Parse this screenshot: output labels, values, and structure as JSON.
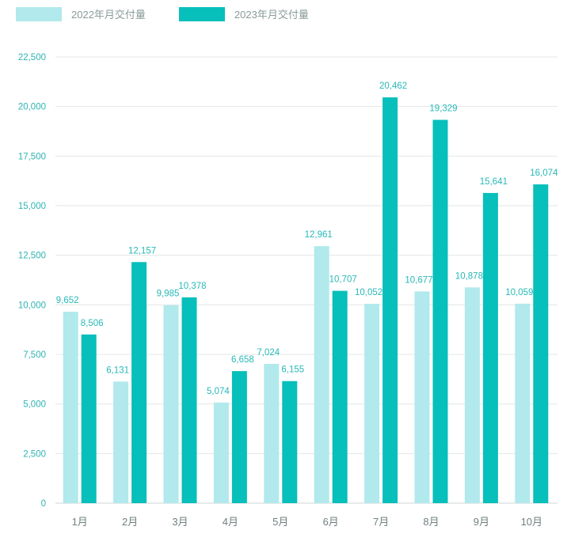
{
  "chart_data": {
    "type": "bar",
    "categories": [
      "1月",
      "2月",
      "3月",
      "4月",
      "5月",
      "6月",
      "7月",
      "8月",
      "9月",
      "10月"
    ],
    "series": [
      {
        "name": "2022年月交付量",
        "color": "#b1e9ec",
        "values": [
          9652,
          6131,
          9985,
          5074,
          7024,
          12961,
          10052,
          10677,
          10878,
          10059
        ],
        "labels": [
          "9,652",
          "6,131",
          "9,985",
          "5,074",
          "7,024",
          "12,961",
          "10,052",
          "10,677",
          "10,878",
          "10,059"
        ]
      },
      {
        "name": "2023年月交付量",
        "color": "#07bfbb",
        "values": [
          8506,
          12157,
          10378,
          6658,
          6155,
          10707,
          20462,
          19329,
          15641,
          16074
        ],
        "labels": [
          "8,506",
          "12,157",
          "10,378",
          "6,658",
          "6,155",
          "10,707",
          "20,462",
          "19,329",
          "15,641",
          "16,074"
        ]
      }
    ],
    "yticks": [
      0,
      2500,
      5000,
      7500,
      10000,
      12500,
      15000,
      17500,
      20000,
      22500
    ],
    "ytick_labels": [
      "0",
      "2,500",
      "5,000",
      "7,500",
      "10,000",
      "12,500",
      "15,000",
      "17,500",
      "20,000",
      "22,500"
    ],
    "ylim": [
      0,
      22500
    ],
    "grid": true,
    "legend_position": "top-left"
  }
}
